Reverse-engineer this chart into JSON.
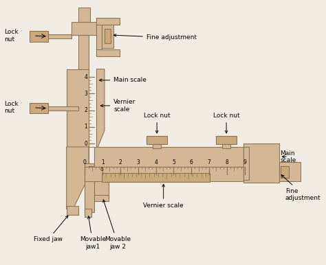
{
  "bg_color": "#f2ede4",
  "body_color": "#d4b896",
  "body_edge": "#8B7355",
  "screw_color": "#c9a87a",
  "text_color": "#000000",
  "labels": {
    "fine_adj_top": "Fine adjustment",
    "main_scale_v": "Main scale",
    "vernier_scale_v": "Vernier\nscale",
    "lock_nut_top": "Lock\nnut",
    "lock_nut_mid": "Lock\nnut",
    "lock_nut_h1": "Lock nut",
    "lock_nut_h2": "Lock nut",
    "main_scale_h": "Main\nscale",
    "fine_adj_bot": "Fine\nadjustment",
    "vernier_scale_h": "Vernier scale",
    "fixed_jaw": "Fixed jaw",
    "movable_jaw1": "Movable\njaw1",
    "movable_jaw2": "Movable\njaw 2"
  }
}
